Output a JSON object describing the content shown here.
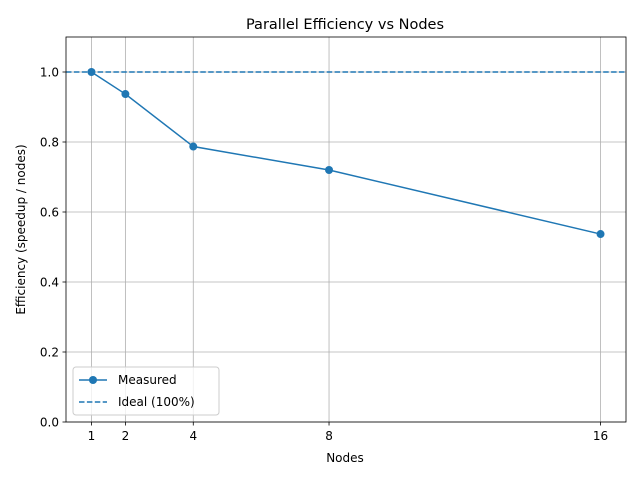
{
  "chart_data": {
    "type": "line",
    "title": "Parallel Efficiency vs Nodes",
    "xlabel": "Nodes",
    "ylabel": "Efficiency (speedup / nodes)",
    "x": [
      1,
      2,
      4,
      8,
      16
    ],
    "xticks": [
      1,
      2,
      4,
      8,
      16
    ],
    "yticks": [
      0.0,
      0.2,
      0.4,
      0.6,
      0.8,
      1.0
    ],
    "xlim": [
      0.25,
      16.75
    ],
    "ylim": [
      0,
      1.1
    ],
    "grid": true,
    "legend_position": "lower-left",
    "series": [
      {
        "name": "Measured",
        "values": [
          1.0,
          0.937,
          0.787,
          0.72,
          0.537
        ],
        "color": "#1f77b4",
        "style": "solid",
        "marker": "circle"
      }
    ],
    "reference_lines": [
      {
        "name": "Ideal (100%)",
        "y": 1.0,
        "color": "#1f77b4",
        "style": "dashed"
      }
    ]
  }
}
